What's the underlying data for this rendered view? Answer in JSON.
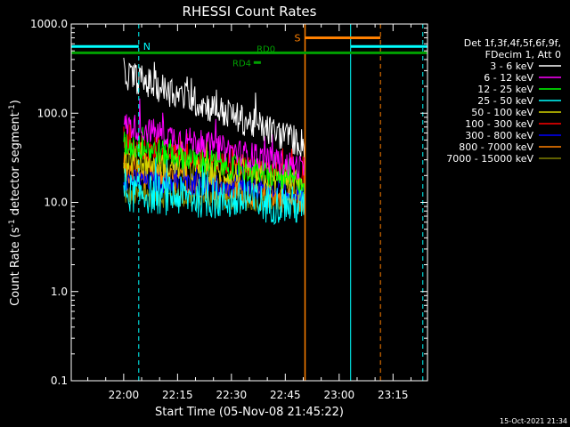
{
  "footer": {
    "timestamp": "15-Oct-2021 21:34"
  },
  "chart_data": {
    "type": "line",
    "title": "RHESSI Count Rates",
    "xlabel": "Start Time (05-Nov-08 21:45:22)",
    "ylabel_main": "Count Rate (s",
    "ylabel_sup1": "-1",
    "ylabel_mid": " detector segment",
    "ylabel_sup2": "-1",
    "ylabel_end": ")",
    "yscale": "log",
    "xlim_minutes": [
      -14.6,
      84.6
    ],
    "ylim": [
      0.1,
      1000
    ],
    "x_ticks": [
      {
        "t": 0,
        "label": "22:00"
      },
      {
        "t": 15,
        "label": "22:15"
      },
      {
        "t": 30,
        "label": "22:30"
      },
      {
        "t": 45,
        "label": "22:45"
      },
      {
        "t": 60,
        "label": "23:00"
      },
      {
        "t": 75,
        "label": "23:15"
      }
    ],
    "y_ticks": [
      {
        "v": 0.1,
        "label": "0.1"
      },
      {
        "v": 1,
        "label": "1.0"
      },
      {
        "v": 10,
        "label": "10.0"
      },
      {
        "v": 100,
        "label": "100.0"
      },
      {
        "v": 1000,
        "label": "1000.0"
      }
    ],
    "legend": {
      "header1": "Det 1f,3f,4f,5f,6f,9f,",
      "header2": "FDecim 1, Att 0",
      "entries": [
        {
          "label": "3 - 6 keV",
          "color": "#000000"
        },
        {
          "label": "6 - 12 keV",
          "color": "#ff00ff"
        },
        {
          "label": "12 - 25 keV",
          "color": "#00ff00"
        },
        {
          "label": "25 - 50 keV",
          "color": "#00ffff"
        },
        {
          "label": "50 - 100 keV",
          "color": "#d4d400"
        },
        {
          "label": "100 - 300 keV",
          "color": "#ff0000"
        },
        {
          "label": "300 - 800 keV",
          "color": "#0000ff"
        },
        {
          "label": "800 - 7000 keV",
          "color": "#ff8000"
        },
        {
          "label": "7000 - 15000 keV",
          "color": "#808000"
        }
      ]
    },
    "series_levels": [
      {
        "name": "3 - 6 keV",
        "color": "#000000",
        "start": 280,
        "end": 45,
        "noise": 0.35
      },
      {
        "name": "6 - 12 keV",
        "color": "#ff00ff",
        "start": 75,
        "end": 24,
        "noise": 0.3
      },
      {
        "name": "12 - 25 keV",
        "color": "#00ff00",
        "start": 45,
        "end": 17,
        "noise": 0.3
      },
      {
        "name": "25 - 50 keV",
        "color": "#00ffff",
        "start": 13,
        "end": 9,
        "noise": 0.45
      },
      {
        "name": "50 - 100 keV",
        "color": "#d4d400",
        "start": 30,
        "end": 16,
        "noise": 0.3
      },
      {
        "name": "100 - 300 keV",
        "color": "#ff0000",
        "start": 42,
        "end": 20,
        "noise": 0.25
      },
      {
        "name": "300 - 800 keV",
        "color": "#0000ff",
        "start": 18,
        "end": 13,
        "noise": 0.25
      },
      {
        "name": "800 - 7000 keV",
        "color": "#ff8000",
        "start": 22,
        "end": 10,
        "noise": 0.3
      },
      {
        "name": "7000 - 15000 keV",
        "color": "#808000",
        "start": 12,
        "end": 10,
        "noise": 0.25
      }
    ],
    "data_window_minutes": [
      0,
      50.5
    ],
    "annotations": [
      {
        "label": "N",
        "color": "#00ffff"
      },
      {
        "label": "S",
        "color": "#ff8000"
      },
      {
        "label": "RD0",
        "color": "#00a000"
      },
      {
        "label": "RD4",
        "color": "#00a000"
      }
    ],
    "night_intervals": [
      {
        "start": -14.6,
        "end": 4.2
      },
      {
        "start": 63.2,
        "end": 84.6
      }
    ],
    "saa_interval": {
      "start": 50.5,
      "end": 71.5
    },
    "flag_level_high": 560,
    "flag_level_low": 475
  }
}
